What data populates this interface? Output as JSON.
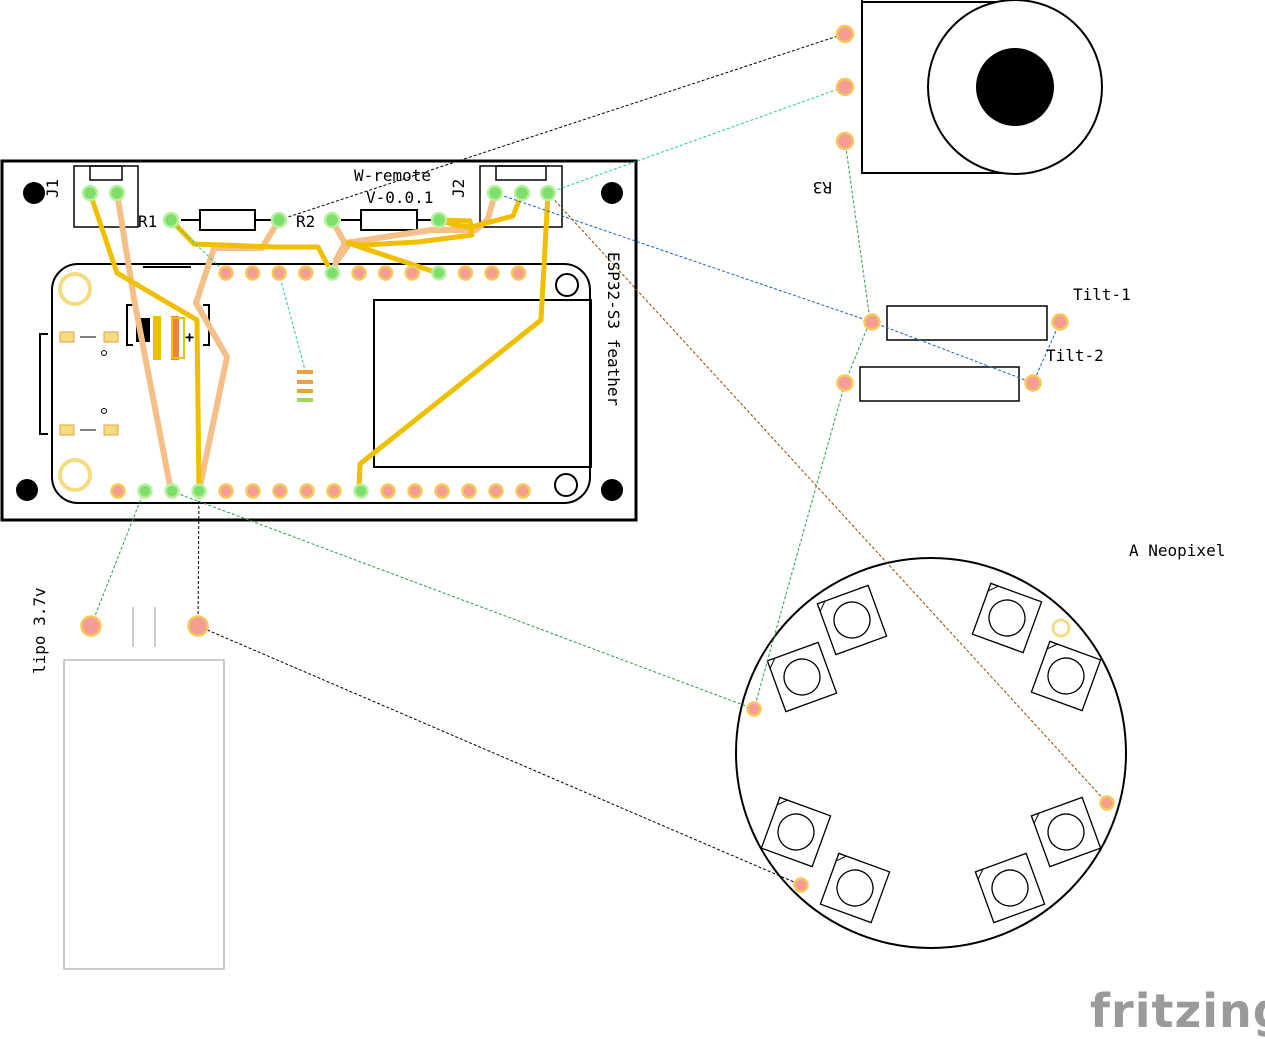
{
  "board": {
    "title": "W-remote",
    "version": "V-0.0.1",
    "module_label": "ESP32-S3 feather",
    "connectors": {
      "j1": "J1",
      "j2": "J2"
    },
    "resistors": {
      "r1": "R1",
      "r2": "R2"
    }
  },
  "parts": {
    "pot_label": "R3",
    "tilt_1_label": "Tilt-1",
    "tilt_2_label": "Tilt-2",
    "neopixel_label": "A Neopixel",
    "battery_label": "lipo 3.7v"
  },
  "logo_text": "fritzing",
  "colors": {
    "trace_top": "#f0c000",
    "trace_bottom": "#f5c088",
    "pad_fill": "#f59c94",
    "pad_ring": "#f5c85a",
    "pad_connected": "#7ee06a"
  }
}
